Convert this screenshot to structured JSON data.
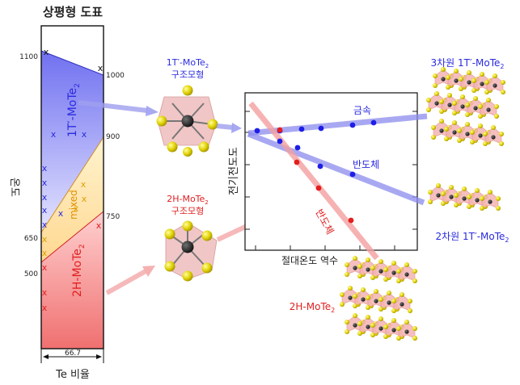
{
  "phase_diagram": {
    "title": "상평형 도표",
    "y_axis_label": "온도",
    "x_axis_label": "Te 비율",
    "x_tick": "66.7",
    "temp_left": [
      "1100",
      "650",
      "500"
    ],
    "temp_right": [
      "1000",
      "900",
      "750"
    ],
    "region_1t": "1T′-MoTe",
    "region_1t_sub": "2",
    "region_mixed": "mixed",
    "region_2h": "2H-MoTe",
    "region_2h_sub": "2",
    "marker": "x",
    "colors": {
      "one_t": "#3d3df0",
      "mixed": "#f0a020",
      "two_h": "#e02020"
    }
  },
  "structures": {
    "one_t_label": "1T′-MoTe",
    "one_t_sub": "2",
    "one_t_model": "구조모형",
    "two_h_label": "2H-MoTe",
    "two_h_sub": "2",
    "two_h_model": "구조모형"
  },
  "conductivity_plot": {
    "ylabel": "전기전도도",
    "xlabel": "절대온도 역수",
    "metal_label": "금속",
    "semi_blue_label": "반도체",
    "semi_red_label": "반도체"
  },
  "crystals": {
    "three_d_label": "3차원 1T′-MoTe",
    "three_d_sub": "2",
    "two_d_label": "2차원 1T′-MoTe",
    "two_d_sub": "2",
    "two_h_label": "2H-MoTe",
    "two_h_sub": "2"
  }
}
